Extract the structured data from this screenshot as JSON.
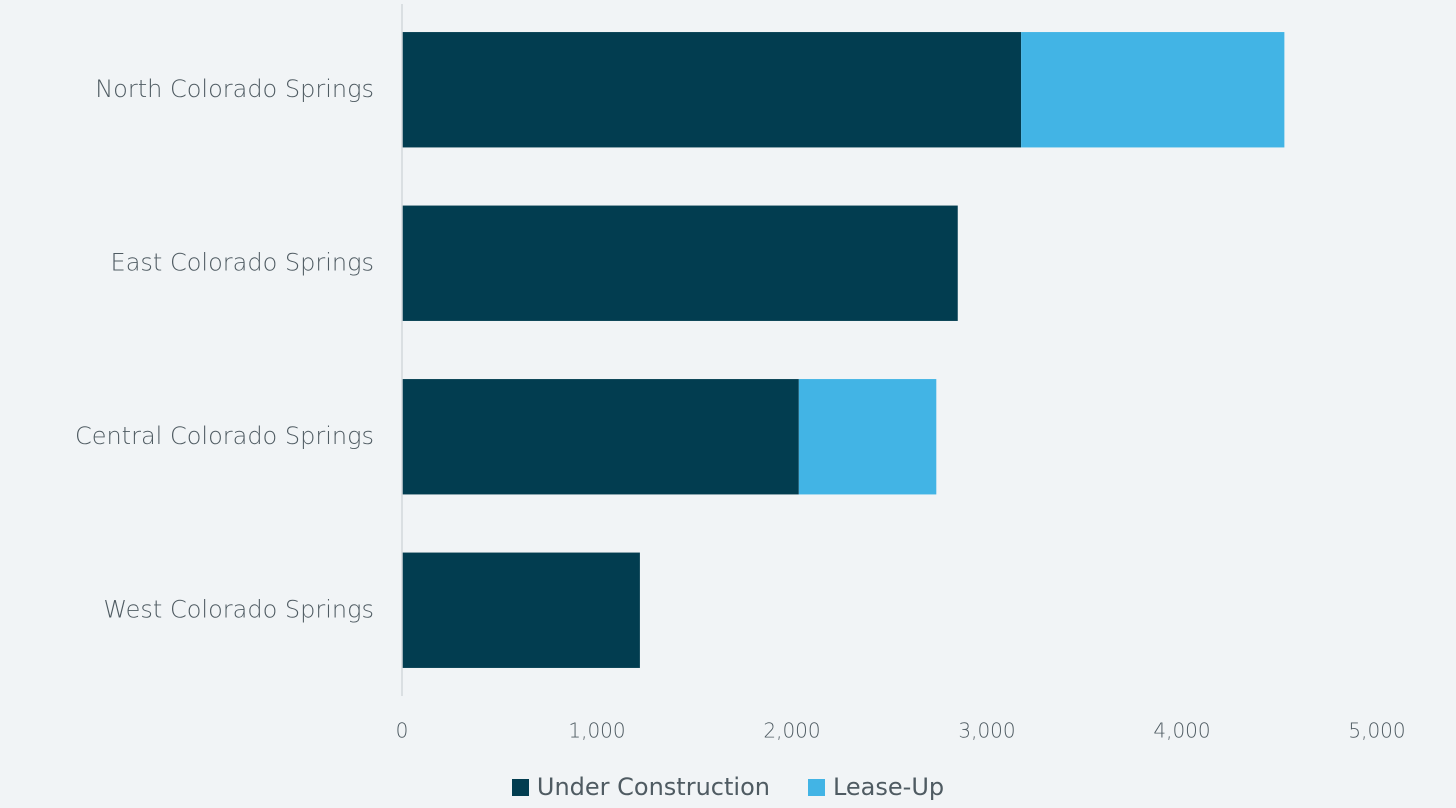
{
  "chart_data": {
    "type": "bar",
    "orientation": "horizontal",
    "stacked": true,
    "title": "",
    "xlabel": "",
    "ylabel": "",
    "categories": [
      "North Colorado Springs",
      "East Colorado Springs",
      "Central Colorado Springs",
      "West Colorado Springs"
    ],
    "series": [
      {
        "name": "Under Construction",
        "color": "#023d50",
        "values": [
          3175,
          2850,
          2035,
          1220
        ]
      },
      {
        "name": "Lease-Up",
        "color": "#42b4e5",
        "values": [
          1350,
          0,
          705,
          0
        ]
      }
    ],
    "xlim": [
      0,
      5000
    ],
    "xticks": [
      0,
      1000,
      2000,
      3000,
      4000,
      5000
    ],
    "xtick_labels": [
      "0",
      "1,000",
      "2,000",
      "3,000",
      "4,000",
      "5,000"
    ],
    "grid": false,
    "legend_position": "bottom"
  }
}
